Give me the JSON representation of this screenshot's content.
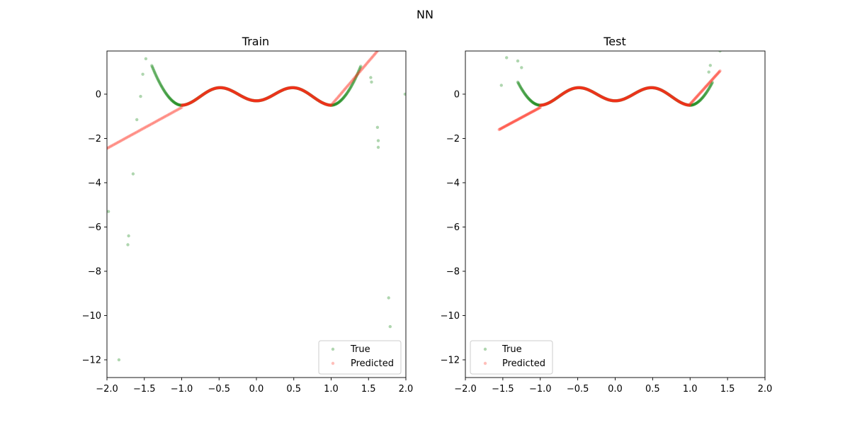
{
  "figure": {
    "suptitle": "NN"
  },
  "colors": {
    "true": "#1a8a1a",
    "predicted": "#ff2a1a",
    "true_alpha": 0.35,
    "predicted_alpha": 0.3
  },
  "chart_data": [
    {
      "type": "scatter",
      "title": "Train",
      "xlabel": "",
      "ylabel": "",
      "xlim": [
        -2.0,
        2.0
      ],
      "ylim": [
        -12.8,
        1.95
      ],
      "xticks": [
        -2.0,
        -1.5,
        -1.0,
        -0.5,
        0.0,
        0.5,
        1.0,
        1.5,
        2.0
      ],
      "xtick_labels": [
        "−2.0",
        "−1.5",
        "−1.0",
        "−0.5",
        "0.0",
        "0.5",
        "1.0",
        "1.5",
        "2.0"
      ],
      "yticks": [
        -12,
        -10,
        -8,
        -6,
        -4,
        -2,
        0
      ],
      "ytick_labels": [
        "−12",
        "−10",
        "−8",
        "−6",
        "−4",
        "−2",
        "0"
      ],
      "grid": false,
      "legend": {
        "placement": "lower-right",
        "entries": [
          "True",
          "Predicted"
        ]
      },
      "series": [
        {
          "name": "True",
          "curve_range": [
            -1.4,
            1.4
          ],
          "outliers": [
            [
              -1.98,
              -5.3
            ],
            [
              -1.71,
              -6.4
            ],
            [
              -1.72,
              -6.8
            ],
            [
              -1.84,
              -12.0
            ],
            [
              -1.65,
              -3.6
            ],
            [
              -1.6,
              -1.15
            ],
            [
              -1.55,
              -0.1
            ],
            [
              -1.52,
              0.9
            ],
            [
              -1.48,
              1.6
            ],
            [
              1.53,
              0.75
            ],
            [
              1.54,
              0.55
            ],
            [
              1.62,
              -1.5
            ],
            [
              1.63,
              -2.1
            ],
            [
              1.63,
              -2.4
            ],
            [
              1.77,
              -9.2
            ],
            [
              1.79,
              -10.5
            ],
            [
              1.99,
              0.0
            ]
          ]
        },
        {
          "name": "Predicted",
          "line_segment": {
            "x": [
              -2.0,
              -1.0
            ],
            "y": [
              -2.45,
              -0.6
            ]
          },
          "curve_range": [
            -1.0,
            1.0
          ],
          "upper_segment": {
            "x": [
              1.0,
              1.62
            ],
            "y": [
              -0.5,
              1.95
            ]
          }
        }
      ]
    },
    {
      "type": "scatter",
      "title": "Test",
      "xlabel": "",
      "ylabel": "",
      "xlim": [
        -2.0,
        2.0
      ],
      "ylim": [
        -12.8,
        1.95
      ],
      "xticks": [
        -2.0,
        -1.5,
        -1.0,
        -0.5,
        0.0,
        0.5,
        1.0,
        1.5,
        2.0
      ],
      "xtick_labels": [
        "−2.0",
        "−1.5",
        "−1.0",
        "−0.5",
        "0.0",
        "0.5",
        "1.0",
        "1.5",
        "2.0"
      ],
      "yticks": [
        -12,
        -10,
        -8,
        -6,
        -4,
        -2,
        0
      ],
      "ytick_labels": [
        "−12",
        "−10",
        "−8",
        "−6",
        "−4",
        "−2",
        "0"
      ],
      "grid": false,
      "legend": {
        "placement": "lower-left",
        "entries": [
          "True",
          "Predicted"
        ]
      },
      "series": [
        {
          "name": "True",
          "curve_range": [
            -1.3,
            1.3
          ],
          "outliers": [
            [
              -1.52,
              0.4
            ],
            [
              -1.45,
              1.65
            ],
            [
              -1.3,
              1.5
            ],
            [
              -1.25,
              1.2
            ],
            [
              1.25,
              1.0
            ],
            [
              1.27,
              1.3
            ],
            [
              1.4,
              1.95
            ]
          ]
        },
        {
          "name": "Predicted",
          "line_segment": {
            "x": [
              -1.55,
              -1.0
            ],
            "y": [
              -1.6,
              -0.6
            ]
          },
          "curve_range": [
            -1.0,
            1.0
          ],
          "upper_segment": {
            "x": [
              1.0,
              1.4
            ],
            "y": [
              -0.45,
              1.05
            ]
          }
        }
      ]
    }
  ]
}
